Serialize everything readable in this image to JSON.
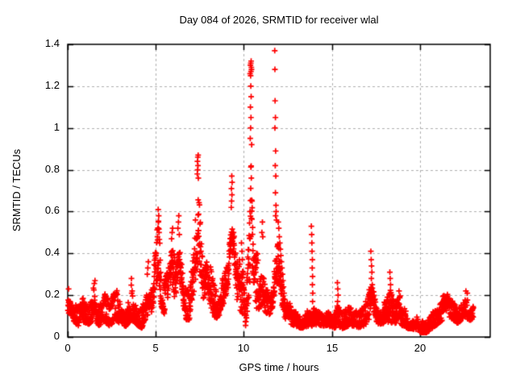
{
  "chart_data": {
    "type": "scatter",
    "title": "Day 084 of 2026, SRMTID for receiver wlal",
    "xlabel": "GPS time / hours",
    "ylabel": "SRMTID / TECUs",
    "xlim": [
      0,
      24
    ],
    "ylim": [
      0,
      1.4
    ],
    "xticks": [
      0,
      5,
      10,
      15,
      20
    ],
    "yticks": [
      0,
      0.2,
      0.4,
      0.6,
      0.8,
      1.0,
      1.2,
      1.4
    ],
    "xtick_labels": [
      "0",
      "5",
      "10",
      "15",
      "20"
    ],
    "ytick_labels": [
      "0",
      "0.2",
      "0.4",
      "0.6",
      "0.8",
      "1",
      "1.2",
      "1.4"
    ],
    "grid": true,
    "grid_style": "dashed",
    "legend": "none",
    "marker": "plus",
    "marker_color": "#ff0000",
    "series_name": "SRMTID",
    "data_start_hour": 0.0,
    "data_end_hour": 23.05,
    "band_envelope_t_lo_hi": [
      [
        0.0,
        0.09,
        0.22
      ],
      [
        0.3,
        0.08,
        0.18
      ],
      [
        0.6,
        0.05,
        0.15
      ],
      [
        0.9,
        0.07,
        0.2
      ],
      [
        1.2,
        0.06,
        0.16
      ],
      [
        1.5,
        0.08,
        0.26
      ],
      [
        1.8,
        0.05,
        0.15
      ],
      [
        2.1,
        0.07,
        0.22
      ],
      [
        2.4,
        0.05,
        0.16
      ],
      [
        2.7,
        0.08,
        0.24
      ],
      [
        3.0,
        0.06,
        0.2
      ],
      [
        3.3,
        0.05,
        0.15
      ],
      [
        3.6,
        0.08,
        0.26
      ],
      [
        3.9,
        0.06,
        0.17
      ],
      [
        4.2,
        0.04,
        0.14
      ],
      [
        4.5,
        0.1,
        0.3
      ],
      [
        4.8,
        0.12,
        0.28
      ],
      [
        5.05,
        0.25,
        0.5
      ],
      [
        5.15,
        0.3,
        0.58
      ],
      [
        5.3,
        0.15,
        0.35
      ],
      [
        5.5,
        0.1,
        0.28
      ],
      [
        5.75,
        0.15,
        0.38
      ],
      [
        5.95,
        0.22,
        0.48
      ],
      [
        6.1,
        0.15,
        0.4
      ],
      [
        6.3,
        0.28,
        0.55
      ],
      [
        6.5,
        0.18,
        0.4
      ],
      [
        6.7,
        0.08,
        0.28
      ],
      [
        6.9,
        0.08,
        0.22
      ],
      [
        7.1,
        0.15,
        0.4
      ],
      [
        7.3,
        0.3,
        0.65
      ],
      [
        7.4,
        0.35,
        0.75
      ],
      [
        7.55,
        0.28,
        0.6
      ],
      [
        7.7,
        0.18,
        0.42
      ],
      [
        7.9,
        0.22,
        0.45
      ],
      [
        8.1,
        0.15,
        0.35
      ],
      [
        8.35,
        0.08,
        0.24
      ],
      [
        8.6,
        0.1,
        0.28
      ],
      [
        8.85,
        0.15,
        0.35
      ],
      [
        9.1,
        0.22,
        0.4
      ],
      [
        9.3,
        0.32,
        0.6
      ],
      [
        9.45,
        0.28,
        0.58
      ],
      [
        9.6,
        0.18,
        0.45
      ],
      [
        9.8,
        0.12,
        0.35
      ],
      [
        9.95,
        0.1,
        0.42
      ],
      [
        10.1,
        0.05,
        0.18
      ],
      [
        10.3,
        0.15,
        0.55
      ],
      [
        10.42,
        0.25,
        0.9
      ],
      [
        10.55,
        0.1,
        0.4
      ],
      [
        10.8,
        0.12,
        0.4
      ],
      [
        11.0,
        0.15,
        0.48
      ],
      [
        11.2,
        0.12,
        0.38
      ],
      [
        11.4,
        0.1,
        0.3
      ],
      [
        11.6,
        0.12,
        0.28
      ],
      [
        11.8,
        0.25,
        0.55
      ],
      [
        12.0,
        0.25,
        0.5
      ],
      [
        12.2,
        0.1,
        0.32
      ],
      [
        12.4,
        0.05,
        0.17
      ],
      [
        12.7,
        0.06,
        0.16
      ],
      [
        13.0,
        0.05,
        0.14
      ],
      [
        13.3,
        0.04,
        0.12
      ],
      [
        13.6,
        0.05,
        0.13
      ],
      [
        13.9,
        0.05,
        0.15
      ],
      [
        14.2,
        0.05,
        0.13
      ],
      [
        14.5,
        0.04,
        0.12
      ],
      [
        14.8,
        0.05,
        0.14
      ],
      [
        15.1,
        0.04,
        0.12
      ],
      [
        15.35,
        0.05,
        0.18
      ],
      [
        15.6,
        0.04,
        0.12
      ],
      [
        15.9,
        0.05,
        0.16
      ],
      [
        16.2,
        0.05,
        0.15
      ],
      [
        16.5,
        0.04,
        0.12
      ],
      [
        16.8,
        0.05,
        0.15
      ],
      [
        17.1,
        0.07,
        0.24
      ],
      [
        17.3,
        0.08,
        0.3
      ],
      [
        17.5,
        0.05,
        0.17
      ],
      [
        17.8,
        0.04,
        0.13
      ],
      [
        18.1,
        0.06,
        0.2
      ],
      [
        18.35,
        0.07,
        0.24
      ],
      [
        18.6,
        0.05,
        0.16
      ],
      [
        18.9,
        0.06,
        0.2
      ],
      [
        19.2,
        0.04,
        0.13
      ],
      [
        19.5,
        0.04,
        0.11
      ],
      [
        19.8,
        0.03,
        0.1
      ],
      [
        20.1,
        0.02,
        0.09
      ],
      [
        20.4,
        0.02,
        0.08
      ],
      [
        20.7,
        0.04,
        0.12
      ],
      [
        21.0,
        0.06,
        0.16
      ],
      [
        21.3,
        0.08,
        0.2
      ],
      [
        21.6,
        0.1,
        0.22
      ],
      [
        21.9,
        0.08,
        0.19
      ],
      [
        22.2,
        0.06,
        0.16
      ],
      [
        22.5,
        0.1,
        0.21
      ],
      [
        22.8,
        0.08,
        0.19
      ],
      [
        23.05,
        0.08,
        0.16
      ]
    ],
    "spike_points_t_y": [
      [
        0.05,
        0.23
      ],
      [
        1.55,
        0.27
      ],
      [
        3.62,
        0.28
      ],
      [
        4.52,
        0.3
      ],
      [
        4.55,
        0.33
      ],
      [
        4.58,
        0.36
      ],
      [
        5.1,
        0.48
      ],
      [
        5.13,
        0.52
      ],
      [
        5.15,
        0.55
      ],
      [
        5.17,
        0.58
      ],
      [
        5.14,
        0.61
      ],
      [
        5.19,
        0.5
      ],
      [
        5.9,
        0.47
      ],
      [
        5.93,
        0.5
      ],
      [
        5.96,
        0.52
      ],
      [
        6.26,
        0.52
      ],
      [
        6.29,
        0.55
      ],
      [
        6.31,
        0.58
      ],
      [
        6.34,
        0.49
      ],
      [
        7.36,
        0.78
      ],
      [
        7.38,
        0.8
      ],
      [
        7.4,
        0.82
      ],
      [
        7.37,
        0.84
      ],
      [
        7.39,
        0.86
      ],
      [
        7.41,
        0.87
      ],
      [
        7.42,
        0.76
      ],
      [
        9.29,
        0.62
      ],
      [
        9.31,
        0.65
      ],
      [
        9.33,
        0.68
      ],
      [
        9.3,
        0.71
      ],
      [
        9.34,
        0.74
      ],
      [
        9.32,
        0.77
      ],
      [
        9.87,
        0.45
      ],
      [
        9.9,
        0.41
      ],
      [
        9.92,
        0.37
      ],
      [
        9.89,
        0.3
      ],
      [
        9.93,
        0.25
      ],
      [
        9.91,
        0.2
      ],
      [
        10.37,
        0.95
      ],
      [
        10.39,
        1.0
      ],
      [
        10.41,
        1.05
      ],
      [
        10.38,
        1.1
      ],
      [
        10.42,
        1.15
      ],
      [
        10.4,
        1.2
      ],
      [
        10.39,
        1.25
      ],
      [
        10.41,
        1.27
      ],
      [
        10.43,
        1.29
      ],
      [
        10.38,
        1.3
      ],
      [
        10.4,
        1.31
      ],
      [
        10.42,
        1.32
      ],
      [
        10.44,
        1.28
      ],
      [
        10.36,
        1.26
      ],
      [
        10.45,
        0.92
      ],
      [
        11.03,
        0.5
      ],
      [
        11.06,
        0.55
      ],
      [
        11.08,
        0.48
      ],
      [
        11.76,
        1.37
      ],
      [
        11.77,
        1.28
      ],
      [
        11.78,
        1.13
      ],
      [
        11.8,
        1.05
      ],
      [
        11.77,
        1.0
      ],
      [
        11.81,
        0.89
      ],
      [
        11.79,
        0.82
      ],
      [
        11.82,
        0.77
      ],
      [
        11.8,
        0.69
      ],
      [
        11.83,
        0.63
      ],
      [
        11.81,
        0.58
      ],
      [
        11.84,
        0.6
      ],
      [
        11.86,
        0.56
      ],
      [
        11.96,
        0.55
      ],
      [
        11.99,
        0.52
      ],
      [
        12.02,
        0.48
      ],
      [
        12.05,
        0.45
      ],
      [
        12.08,
        0.42
      ],
      [
        12.11,
        0.39
      ],
      [
        12.14,
        0.36
      ],
      [
        12.17,
        0.33
      ],
      [
        12.2,
        0.3
      ],
      [
        12.23,
        0.27
      ],
      [
        12.26,
        0.24
      ],
      [
        12.29,
        0.21
      ],
      [
        12.32,
        0.18
      ],
      [
        13.84,
        0.53
      ],
      [
        13.86,
        0.49
      ],
      [
        13.87,
        0.45
      ],
      [
        13.88,
        0.41
      ],
      [
        13.9,
        0.37
      ],
      [
        13.89,
        0.33
      ],
      [
        13.91,
        0.29
      ],
      [
        13.9,
        0.25
      ],
      [
        13.92,
        0.21
      ],
      [
        13.91,
        0.17
      ],
      [
        15.32,
        0.26
      ],
      [
        15.34,
        0.23
      ],
      [
        15.36,
        0.2
      ],
      [
        15.33,
        0.17
      ],
      [
        17.22,
        0.41
      ],
      [
        17.24,
        0.37
      ],
      [
        17.26,
        0.34
      ],
      [
        17.28,
        0.31
      ],
      [
        17.25,
        0.28
      ],
      [
        17.3,
        0.25
      ],
      [
        17.27,
        0.22
      ],
      [
        18.3,
        0.31
      ],
      [
        18.32,
        0.28
      ],
      [
        18.34,
        0.25
      ],
      [
        18.31,
        0.21
      ],
      [
        18.82,
        0.22
      ],
      [
        18.85,
        0.19
      ],
      [
        22.62,
        0.22
      ],
      [
        22.7,
        0.21
      ]
    ]
  }
}
